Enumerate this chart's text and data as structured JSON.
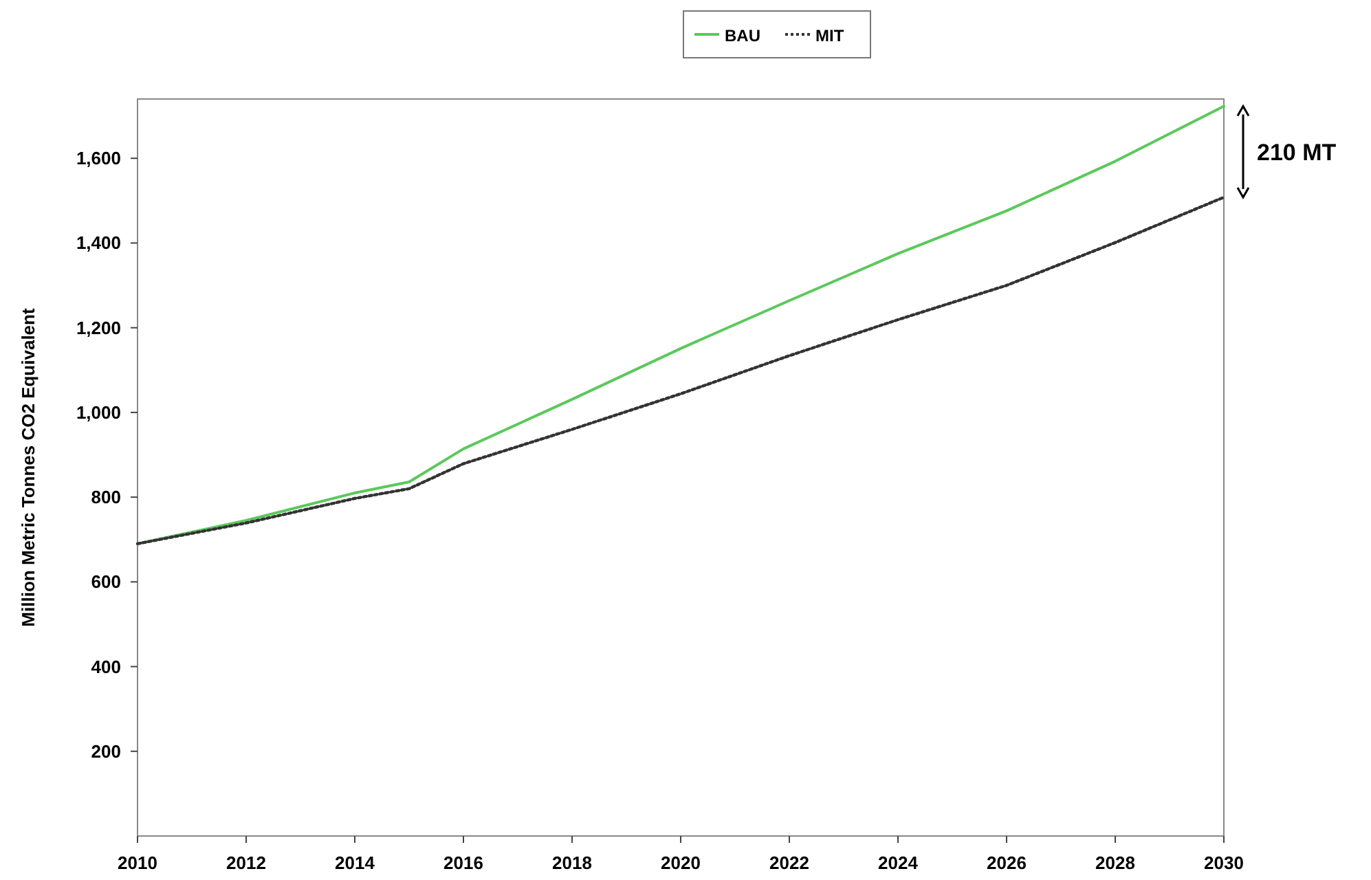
{
  "chart_data": {
    "type": "line",
    "ylabel": "Million Metric Tonnes CO2 Equivalent",
    "x": [
      2010,
      2012,
      2014,
      2015,
      2016,
      2018,
      2020,
      2022,
      2024,
      2026,
      2028,
      2030
    ],
    "series": [
      {
        "name": "BAU",
        "color": "#5cc85c",
        "line_style": "solid",
        "values": [
          690,
          745,
          810,
          836,
          914,
          1031,
          1151,
          1264,
          1375,
          1476,
          1593,
          1723
        ]
      },
      {
        "name": "MIT",
        "color": "#333333",
        "line_style": "dotted",
        "values": [
          690,
          739,
          797,
          820,
          879,
          960,
          1044,
          1134,
          1219,
          1300,
          1401,
          1508
        ]
      }
    ],
    "xlim": [
      2010,
      2030
    ],
    "xticks": [
      2010,
      2012,
      2014,
      2016,
      2018,
      2020,
      2022,
      2024,
      2026,
      2028,
      2030
    ],
    "ylim": [
      0,
      1740
    ],
    "yticks": [
      {
        "value": 200,
        "label": "200"
      },
      {
        "value": 400,
        "label": "400"
      },
      {
        "value": 600,
        "label": "600"
      },
      {
        "value": 800,
        "label": "800"
      },
      {
        "value": 1000,
        "label": "1,000"
      },
      {
        "value": 1200,
        "label": "1,200"
      },
      {
        "value": 1400,
        "label": "1,400"
      },
      {
        "value": 1600,
        "label": "1,600"
      }
    ],
    "annotations": [
      "210 MT"
    ],
    "legend": "top",
    "grid": false,
    "marker": "none"
  }
}
